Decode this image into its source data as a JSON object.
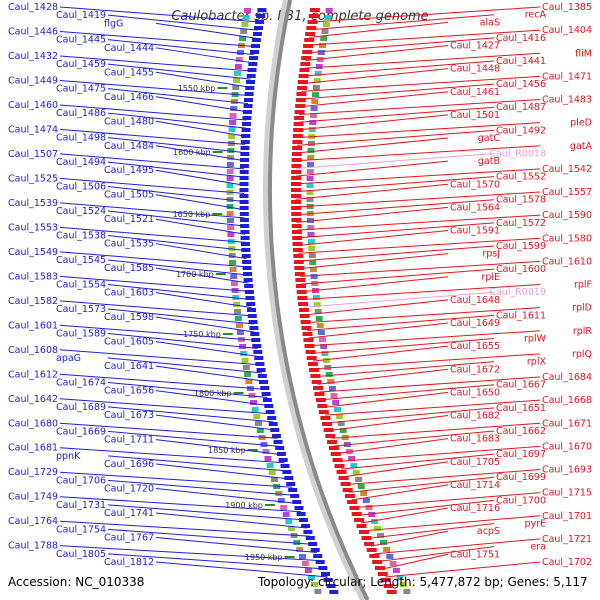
{
  "title": "Caulobacter sp. K31, complete genome",
  "footer": {
    "accession": "Accession: NC_010338",
    "stats": "Topology: circular; Length: 5,477,872 bp; Genes: 5,117"
  },
  "colors": {
    "forward": "#1f1fd6",
    "reverse": "#e8141e",
    "rna": "#e8a0d8",
    "backbone": "#8a8a8a",
    "tick": "#2a8a2a"
  },
  "scale_ticks": [
    "1550 kbp",
    "1600 kbp",
    "1650 kbp",
    "1700 kbp",
    "1750 kbp",
    "1800 kbp",
    "1850 kbp",
    "1900 kbp",
    "1950 kbp"
  ],
  "left_labels": [
    "Caul_1428",
    "Caul_1419",
    "flgG",
    "Caul_1446",
    "Caul_1445",
    "Caul_1444",
    "Caul_1432",
    "Caul_1459",
    "Caul_1455",
    "Caul_1449",
    "Caul_1475",
    "Caul_1466",
    "Caul_1460",
    "Caul_1486",
    "Caul_1480",
    "Caul_1474",
    "Caul_1498",
    "Caul_1484",
    "Caul_1507",
    "Caul_1494",
    "Caul_1495",
    "Caul_1525",
    "Caul_1506",
    "Caul_1505",
    "Caul_1539",
    "Caul_1524",
    "Caul_1521",
    "Caul_1553",
    "Caul_1538",
    "Caul_1535",
    "Caul_1549",
    "Caul_1545",
    "Caul_1585",
    "Caul_1583",
    "Caul_1554",
    "Caul_1603",
    "Caul_1582",
    "Caul_1573",
    "Caul_1598",
    "Caul_1601",
    "Caul_1589",
    "Caul_1605",
    "Caul_1608",
    "apaG",
    "Caul_1641",
    "Caul_1612",
    "Caul_1674",
    "Caul_1656",
    "Caul_1642",
    "Caul_1689",
    "Caul_1673",
    "Caul_1680",
    "Caul_1669",
    "Caul_1711",
    "Caul_1681",
    "ppnK",
    "Caul_1696",
    "Caul_1729",
    "Caul_1706",
    "Caul_1720",
    "Caul_1749",
    "Caul_1731",
    "Caul_1741",
    "Caul_1764",
    "Caul_1754",
    "Caul_1767",
    "Caul_1788",
    "Caul_1805",
    "Caul_1812"
  ],
  "right_labels": [
    "Caul_1385",
    "recA",
    "alaS",
    "Caul_1404",
    "Caul_1416",
    "Caul_1427",
    "fliM",
    "Caul_1441",
    "Caul_1448",
    "Caul_1471",
    "Caul_1456",
    "Caul_1461",
    "Caul_1483",
    "Caul_1487",
    "Caul_1501",
    "pleD",
    "Caul_1492",
    "gatC",
    "gatA",
    "Caul_R0018",
    "gatB",
    "Caul_1542",
    "Caul_1552",
    "Caul_1570",
    "Caul_1557",
    "Caul_1578",
    "Caul_1564",
    "Caul_1590",
    "Caul_1572",
    "Caul_1591",
    "Caul_1580",
    "Caul_1599",
    "rpsJ",
    "Caul_1610",
    "Caul_1600",
    "rplE",
    "rplF",
    "Caul_R0019",
    "Caul_1648",
    "rplD",
    "Caul_1611",
    "Caul_1649",
    "rplR",
    "rplW",
    "Caul_1655",
    "rplQ",
    "rplX",
    "Caul_1672",
    "Caul_1684",
    "Caul_1667",
    "Caul_1650",
    "Caul_1668",
    "Caul_1651",
    "Caul_1682",
    "Caul_1671",
    "Caul_1662",
    "Caul_1683",
    "Caul_1670",
    "Caul_1697",
    "Caul_1705",
    "Caul_1693",
    "Caul_1699",
    "Caul_1714",
    "Caul_1715",
    "Caul_1700",
    "Caul_1716",
    "Caul_1701",
    "pyrE",
    "acpS",
    "Caul_1721",
    "era",
    "Caul_1751",
    "Caul_1702"
  ]
}
